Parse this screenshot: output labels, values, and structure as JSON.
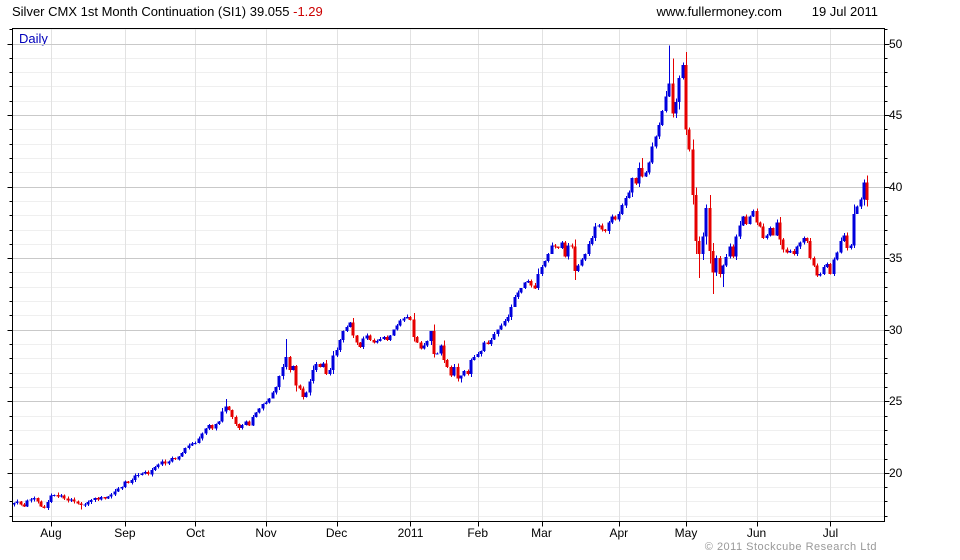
{
  "header": {
    "title": "Silver CMX 1st Month Continuation (SI1)",
    "price": "39.055",
    "change": "-1.29",
    "site": "www.fullermoney.com",
    "date": "19 Jul 2011"
  },
  "footer": {
    "copyright": "© 2011 Stockcube Research Ltd"
  },
  "chart_data": {
    "type": "candlestick",
    "frequency_label": "Daily",
    "instrument": "Silver CMX 1st Month Continuation (SI1)",
    "last_close": 39.055,
    "change": -1.29,
    "date_range": "Jul 2010 - 19 Jul 2011",
    "ylim": [
      16.6,
      51.05
    ],
    "y_ticks": [
      50,
      45,
      40,
      35,
      30,
      25,
      20
    ],
    "x_labels": [
      "Aug",
      "Sep",
      "Oct",
      "Nov",
      "Dec",
      "2011",
      "Feb",
      "Mar",
      "Apr",
      "May",
      "Jun",
      "Jul"
    ],
    "month_start_indices": [
      11,
      33,
      54,
      75,
      96,
      118,
      138,
      157,
      180,
      200,
      221,
      243
    ],
    "first_open": 17.8,
    "closes": [
      17.9,
      18.0,
      17.8,
      17.65,
      18.05,
      18.15,
      18.25,
      18.0,
      17.65,
      17.55,
      17.95,
      18.4,
      18.45,
      18.35,
      18.4,
      18.2,
      18.05,
      18.15,
      18.0,
      17.85,
      17.75,
      17.8,
      17.95,
      18.1,
      18.25,
      18.15,
      18.3,
      18.2,
      18.35,
      18.5,
      18.7,
      18.9,
      19.0,
      19.4,
      19.3,
      19.5,
      19.8,
      19.85,
      19.95,
      20.05,
      19.9,
      20.2,
      20.4,
      20.6,
      20.8,
      20.65,
      20.8,
      21.05,
      20.95,
      21.15,
      21.4,
      21.75,
      21.9,
      22.05,
      22.1,
      22.4,
      22.75,
      23.1,
      23.35,
      23.1,
      23.4,
      23.6,
      24.3,
      24.65,
      24.4,
      23.9,
      23.4,
      23.15,
      23.35,
      23.6,
      23.3,
      23.9,
      24.2,
      24.5,
      24.8,
      24.9,
      25.2,
      25.6,
      26.0,
      26.75,
      27.4,
      28.1,
      27.2,
      27.45,
      26.1,
      25.9,
      25.3,
      25.6,
      26.4,
      27.2,
      27.6,
      27.4,
      27.65,
      26.9,
      27.2,
      28.2,
      28.6,
      29.3,
      29.9,
      30.2,
      30.5,
      29.6,
      29.1,
      28.8,
      29.4,
      29.6,
      29.3,
      29.1,
      29.2,
      29.35,
      29.5,
      29.3,
      29.6,
      30.0,
      30.3,
      30.65,
      30.8,
      30.9,
      30.7,
      29.5,
      29.1,
      28.7,
      28.9,
      29.2,
      29.9,
      28.3,
      28.35,
      28.9,
      27.9,
      27.4,
      26.8,
      27.4,
      26.6,
      26.8,
      27.1,
      26.9,
      27.9,
      28.1,
      28.3,
      28.5,
      29.1,
      29.0,
      29.3,
      29.7,
      30.0,
      30.3,
      30.6,
      30.9,
      31.6,
      32.3,
      32.6,
      32.9,
      33.3,
      33.4,
      33.1,
      32.9,
      33.9,
      34.4,
      34.8,
      35.3,
      35.9,
      35.8,
      35.7,
      36.1,
      35.1,
      35.9,
      35.8,
      34.1,
      34.5,
      34.9,
      35.3,
      36.0,
      36.4,
      37.2,
      37.3,
      37.0,
      36.9,
      37.5,
      37.9,
      37.7,
      38.1,
      38.7,
      39.2,
      39.6,
      40.6,
      40.2,
      41.3,
      40.7,
      41.0,
      41.7,
      42.8,
      43.5,
      44.3,
      45.3,
      46.3,
      47.2,
      45.1,
      45.9,
      47.6,
      48.5,
      44.0,
      42.6,
      39.4,
      36.2,
      35.3,
      36.5,
      38.5,
      35.5,
      34.0,
      35.0,
      33.9,
      34.5,
      35.1,
      35.8,
      35.1,
      36.5,
      37.3,
      37.9,
      37.4,
      37.9,
      38.3,
      37.5,
      37.2,
      36.4,
      36.6,
      37.1,
      36.6,
      37.5,
      36.3,
      35.6,
      35.4,
      35.5,
      35.3,
      35.8,
      36.1,
      36.4,
      36.2,
      35.0,
      34.5,
      33.8,
      33.9,
      34.4,
      34.6,
      33.9,
      34.9,
      35.4,
      36.2,
      36.6,
      35.7,
      35.9,
      38.1,
      38.6,
      39.1,
      40.3,
      39.055
    ],
    "wick_overrides": [
      {
        "i": 20,
        "low": 17.45
      },
      {
        "i": 63,
        "high": 25.15
      },
      {
        "i": 81,
        "high": 29.35
      },
      {
        "i": 133,
        "low": 26.3
      },
      {
        "i": 187,
        "high": 42.0
      },
      {
        "i": 195,
        "high": 49.85
      },
      {
        "i": 196,
        "high": 48.95
      },
      {
        "i": 204,
        "low": 33.6
      },
      {
        "i": 208,
        "low": 32.5
      },
      {
        "i": 211,
        "low": 33.0
      },
      {
        "i": 253,
        "high": 40.5
      },
      {
        "i": 254,
        "low": 38.6
      }
    ],
    "colors": {
      "up": "#0000dd",
      "down": "#e60000",
      "grid_minor": "#efefef",
      "grid_major": "#c9c9c9",
      "grid_vertical": "#e2e2e2",
      "axis": "#000000",
      "daily_label": "#0000bb",
      "change_text": "#cc0000",
      "copyright_text": "#999999"
    }
  }
}
